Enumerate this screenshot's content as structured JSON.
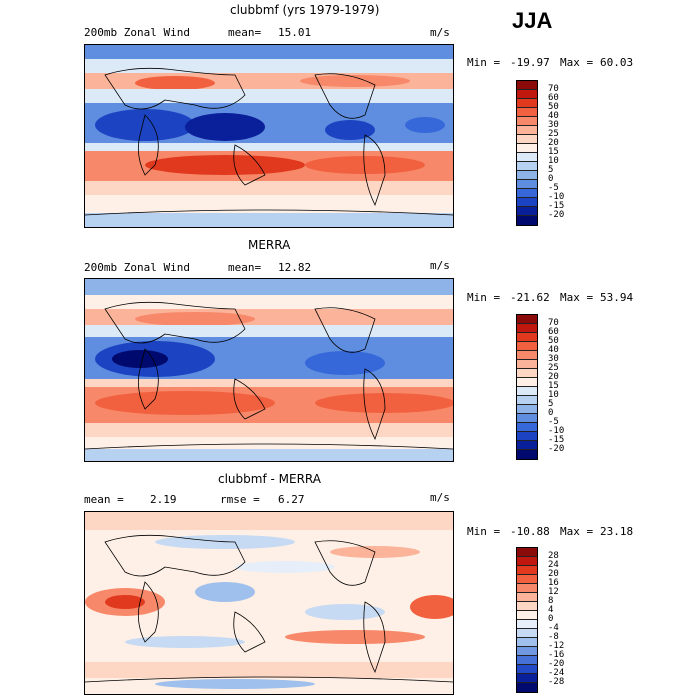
{
  "season": "JJA",
  "panels": [
    {
      "title": "clubbmf (yrs 1979-1979)",
      "left_label": "200mb Zonal Wind",
      "mean_label": "mean=",
      "mean_value": "15.01",
      "units": "m/s",
      "min_label": "Min =",
      "min_value": "-19.97",
      "max_label": "Max =",
      "max_value": "60.03",
      "colorbar_ticks": [
        "70",
        "60",
        "50",
        "40",
        "30",
        "25",
        "20",
        "15",
        "10",
        "5",
        "0",
        "-5",
        "-10",
        "-15",
        "-20"
      ],
      "colorbar_colors": [
        "#8b0a0a",
        "#c0180f",
        "#e0391e",
        "#f2613f",
        "#f7896a",
        "#fbb39a",
        "#fdd6c4",
        "#fef0e6",
        "#dce9f7",
        "#b7d1f0",
        "#8db3e8",
        "#5f8ee0",
        "#3668d9",
        "#1c44c2",
        "#0a1f9a",
        "#000a6e"
      ]
    },
    {
      "title": "MERRA",
      "left_label": "200mb Zonal Wind",
      "mean_label": "mean=",
      "mean_value": "12.82",
      "units": "m/s",
      "min_label": "Min =",
      "min_value": "-21.62",
      "max_label": "Max =",
      "max_value": "53.94",
      "colorbar_ticks": [
        "70",
        "60",
        "50",
        "40",
        "30",
        "25",
        "20",
        "15",
        "10",
        "5",
        "0",
        "-5",
        "-10",
        "-15",
        "-20"
      ],
      "colorbar_colors": [
        "#8b0a0a",
        "#c0180f",
        "#e0391e",
        "#f2613f",
        "#f7896a",
        "#fbb39a",
        "#fdd6c4",
        "#fef0e6",
        "#dce9f7",
        "#b7d1f0",
        "#8db3e8",
        "#5f8ee0",
        "#3668d9",
        "#1c44c2",
        "#0a1f9a",
        "#000a6e"
      ]
    },
    {
      "title": "clubbmf - MERRA",
      "left_label": "mean =",
      "mean_label": "",
      "mean_value": "2.19",
      "rmse_label": "rmse =",
      "rmse_value": "6.27",
      "units": "m/s",
      "min_label": "Min =",
      "min_value": "-10.88",
      "max_label": "Max =",
      "max_value": "23.18",
      "colorbar_ticks": [
        "28",
        "24",
        "20",
        "16",
        "12",
        "8",
        "4",
        "0",
        "-4",
        "-8",
        "-12",
        "-16",
        "-20",
        "-24",
        "-28"
      ],
      "colorbar_colors": [
        "#8b0a0a",
        "#c0180f",
        "#e0391e",
        "#f2613f",
        "#f7896a",
        "#fbb39a",
        "#fdd6c4",
        "#fef0e6",
        "#e6eef9",
        "#c6daf3",
        "#9fbfec",
        "#7097e2",
        "#4672d8",
        "#2249c6",
        "#0a1f9a",
        "#000a6e"
      ]
    }
  ]
}
